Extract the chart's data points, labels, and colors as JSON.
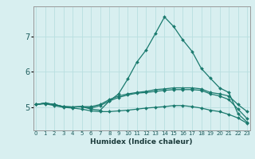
{
  "title": "",
  "xlabel": "Humidex (Indice chaleur)",
  "ylabel": "",
  "bg_color": "#d8eff0",
  "grid_color": "#b8dfe0",
  "line_color": "#1a7a6e",
  "x_ticks": [
    0,
    1,
    2,
    3,
    4,
    5,
    6,
    7,
    8,
    9,
    10,
    11,
    12,
    13,
    14,
    15,
    16,
    17,
    18,
    19,
    20,
    21,
    22,
    23
  ],
  "y_ticks": [
    5,
    6,
    7
  ],
  "xlim": [
    -0.3,
    23.3
  ],
  "ylim": [
    4.35,
    7.85
  ],
  "series": [
    [
      5.08,
      5.12,
      5.08,
      5.02,
      5.01,
      5.02,
      4.95,
      4.92,
      5.18,
      5.38,
      5.8,
      6.28,
      6.62,
      7.08,
      7.55,
      7.28,
      6.9,
      6.58,
      6.1,
      5.82,
      5.55,
      5.42,
      4.82,
      4.58
    ],
    [
      5.08,
      5.12,
      5.08,
      5.02,
      5.01,
      5.02,
      5.02,
      5.08,
      5.22,
      5.32,
      5.38,
      5.42,
      5.45,
      5.5,
      5.52,
      5.55,
      5.55,
      5.55,
      5.52,
      5.42,
      5.38,
      5.32,
      5.08,
      4.88
    ],
    [
      5.08,
      5.12,
      5.08,
      5.02,
      5.01,
      5.02,
      4.98,
      5.05,
      5.18,
      5.28,
      5.35,
      5.4,
      5.42,
      5.45,
      5.48,
      5.5,
      5.5,
      5.5,
      5.48,
      5.38,
      5.32,
      5.22,
      4.95,
      4.68
    ],
    [
      5.08,
      5.1,
      5.05,
      5.0,
      4.98,
      4.95,
      4.9,
      4.88,
      4.88,
      4.9,
      4.92,
      4.95,
      4.98,
      5.0,
      5.02,
      5.05,
      5.05,
      5.02,
      4.98,
      4.92,
      4.88,
      4.8,
      4.7,
      4.55
    ]
  ],
  "xtick_fontsize": 5.0,
  "ytick_fontsize": 7.0,
  "xlabel_fontsize": 6.5
}
